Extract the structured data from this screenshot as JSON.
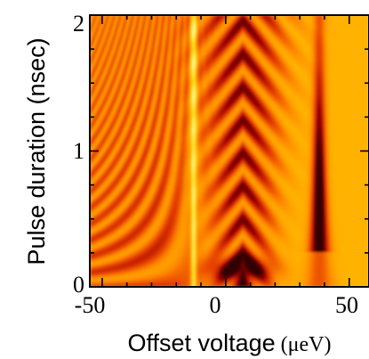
{
  "chart_data": {
    "type": "heatmap",
    "title": "",
    "xlabel": "Offset voltage",
    "xlabel_unit": "(μeV)",
    "ylabel": "Pulse duration (nsec)",
    "xlim": [
      -55,
      58
    ],
    "ylim": [
      0,
      2
    ],
    "xticks": [
      -50,
      0,
      50
    ],
    "xtick_labels": [
      "-50",
      "0",
      "50"
    ],
    "yticks": [
      0,
      1,
      2
    ],
    "ytick_labels": [
      "0",
      "1",
      "2"
    ],
    "colormap": [
      "#ffffa0",
      "#ffd200",
      "#ff8c00",
      "#e64000",
      "#a00000",
      "#300000"
    ],
    "features": [
      {
        "kind": "bright-line",
        "x": -13
      },
      {
        "kind": "chevron-fringes",
        "x": 7
      },
      {
        "kind": "narrow-resonance",
        "x": 38
      }
    ],
    "grid": false
  }
}
